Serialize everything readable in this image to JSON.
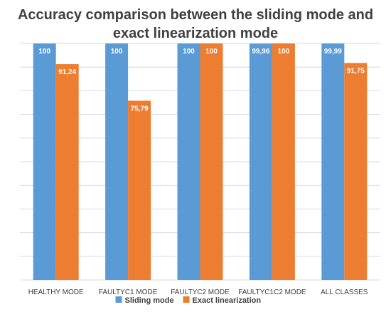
{
  "chart_data": {
    "type": "bar",
    "title_line1": "Accuracy comparison between the sliding mode and",
    "title_line2": "exact linearization mode",
    "categories": [
      "HEALTHY MODE",
      "FAULTYC1 MODE",
      "FAULTYC2 MODE",
      "FAULTYC1C2 MODE",
      "ALL CLASSES"
    ],
    "series": [
      {
        "name": "Sliding mode",
        "color": "#5B9BD5",
        "values": [
          100,
          100,
          100,
          99.96,
          99.99
        ],
        "labels": [
          "100",
          "100",
          "100",
          "99,96",
          "99,99"
        ]
      },
      {
        "name": "Exact linearization",
        "color": "#ED7D31",
        "values": [
          91.24,
          75.79,
          100,
          100,
          91.75
        ],
        "labels": [
          "91,24",
          "75,79",
          "100",
          "100",
          "91,75"
        ]
      }
    ],
    "ylim": [
      0,
      100
    ],
    "grid": true,
    "legend_position": "bottom"
  }
}
